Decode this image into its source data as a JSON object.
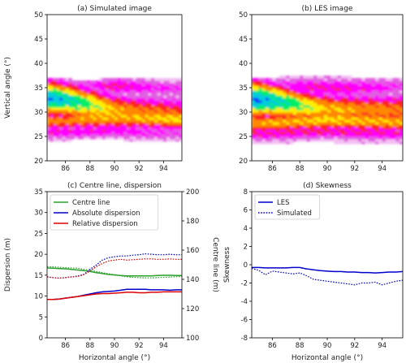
{
  "chart_data": [
    {
      "id": "a",
      "type": "heatmap",
      "title": "(a) Simulated image",
      "xlabel": "",
      "ylabel": "Vertical angle (°)",
      "xlim": [
        84.5,
        95.5
      ],
      "ylim": [
        20,
        50
      ],
      "xticks": [
        86,
        88,
        90,
        92,
        94
      ],
      "yticks": [
        20,
        25,
        30,
        35,
        40,
        45,
        50
      ],
      "colormap": [
        "#ffffff",
        "#f3c0f3",
        "#e060e0",
        "#ff00ff",
        "#ff2020",
        "#ff8800",
        "#ffee00",
        "#00ee66",
        "#00ccdd",
        "#1033ff"
      ],
      "bands": [
        {
          "x": [
            84.5,
            86,
            88,
            90,
            92,
            94,
            95.5
          ],
          "y": [
            33.0,
            32.6,
            31.6,
            30.4,
            30.0,
            29.8,
            29.6
          ],
          "h": [
            2.6,
            2.5,
            2.4,
            2.4,
            2.5,
            2.6,
            2.6
          ],
          "v": [
            0.95,
            0.88,
            0.75,
            0.6,
            0.55,
            0.5,
            0.5
          ]
        },
        {
          "x": [
            84.5,
            86,
            88,
            90,
            92,
            94,
            95.5
          ],
          "y": [
            28.2,
            28.3,
            28.8,
            29.0,
            29.0,
            28.8,
            28.6
          ],
          "h": [
            1.4,
            1.4,
            1.6,
            1.8,
            1.8,
            1.7,
            1.6
          ],
          "v": [
            0.55,
            0.55,
            0.6,
            0.6,
            0.6,
            0.65,
            0.65
          ]
        },
        {
          "x": [
            84.5,
            86,
            88,
            90,
            92,
            94,
            95.5
          ],
          "y": [
            36.0,
            35.8,
            35.5,
            35.4,
            35.2,
            35.0,
            35.0
          ],
          "h": [
            1.0,
            1.0,
            1.2,
            1.4,
            1.4,
            1.2,
            1.0
          ],
          "v": [
            0.25,
            0.25,
            0.3,
            0.4,
            0.35,
            0.32,
            0.3
          ]
        },
        {
          "x": [
            84.5,
            86,
            88,
            90,
            92,
            94,
            95.5
          ],
          "y": [
            26.0,
            26.0,
            26.2,
            26.4,
            26.0,
            25.8,
            25.6
          ],
          "h": [
            1.2,
            1.2,
            1.2,
            1.2,
            1.2,
            1.1,
            1.0
          ],
          "v": [
            0.35,
            0.35,
            0.35,
            0.35,
            0.33,
            0.3,
            0.28
          ]
        }
      ],
      "envelope": {
        "x": [
          84.5,
          86,
          88,
          90,
          92,
          94,
          95.5
        ],
        "top": [
          37.0,
          36.8,
          36.6,
          37.0,
          37.2,
          37.2,
          37.0
        ],
        "bottom": [
          24.2,
          24.2,
          24.4,
          24.4,
          24.0,
          24.0,
          24.0
        ]
      }
    },
    {
      "id": "b",
      "type": "heatmap",
      "title": "(b) LES image",
      "xlabel": "",
      "ylabel": "",
      "xlim": [
        84.5,
        95.5
      ],
      "ylim": [
        20,
        50
      ],
      "xticks": [
        86,
        88,
        90,
        92,
        94
      ],
      "yticks": [
        20,
        25,
        30,
        35,
        40,
        45,
        50
      ],
      "colormap": [
        "#ffffff",
        "#f3c0f3",
        "#e060e0",
        "#ff00ff",
        "#ff2020",
        "#ff8800",
        "#ffee00",
        "#00ee66",
        "#00ccdd",
        "#1033ff"
      ],
      "bands": [
        {
          "x": [
            84.5,
            86,
            88,
            90,
            92,
            94,
            95.5
          ],
          "y": [
            32.8,
            32.4,
            31.4,
            30.8,
            30.6,
            30.6,
            30.6
          ],
          "h": [
            2.8,
            2.6,
            2.4,
            2.2,
            2.2,
            2.2,
            2.2
          ],
          "v": [
            0.97,
            0.9,
            0.75,
            0.62,
            0.58,
            0.55,
            0.55
          ]
        },
        {
          "x": [
            84.5,
            86,
            88,
            90,
            92,
            94,
            95.5
          ],
          "y": [
            27.8,
            27.8,
            28.2,
            28.6,
            28.4,
            28.2,
            28.0
          ],
          "h": [
            1.4,
            1.4,
            1.5,
            1.6,
            1.6,
            1.6,
            1.6
          ],
          "v": [
            0.58,
            0.6,
            0.62,
            0.65,
            0.62,
            0.6,
            0.6
          ]
        },
        {
          "x": [
            84.5,
            86,
            88,
            90,
            92,
            94,
            95.5
          ],
          "y": [
            35.6,
            35.6,
            35.4,
            35.0,
            35.0,
            35.2,
            35.4
          ],
          "h": [
            1.2,
            1.2,
            1.4,
            1.6,
            1.6,
            1.4,
            1.2
          ],
          "v": [
            0.3,
            0.3,
            0.35,
            0.38,
            0.36,
            0.33,
            0.3
          ]
        },
        {
          "x": [
            84.5,
            86,
            88,
            90,
            92,
            94,
            95.5
          ],
          "y": [
            25.8,
            25.8,
            26.0,
            26.2,
            26.0,
            25.8,
            25.6
          ],
          "h": [
            1.2,
            1.2,
            1.2,
            1.2,
            1.2,
            1.1,
            1.0
          ],
          "v": [
            0.4,
            0.4,
            0.4,
            0.42,
            0.4,
            0.38,
            0.36
          ]
        }
      ],
      "envelope": {
        "x": [
          84.5,
          86,
          88,
          90,
          92,
          94,
          95.5
        ],
        "top": [
          37.0,
          37.2,
          37.4,
          37.6,
          37.2,
          37.0,
          37.2
        ],
        "bottom": [
          23.6,
          23.6,
          23.8,
          23.8,
          23.6,
          23.4,
          23.4
        ]
      }
    },
    {
      "id": "c",
      "type": "line",
      "title": "(c) Centre line, dispersion",
      "xlabel": "Horizontal angle (°)",
      "ylabel": "Dispersion (m)",
      "ylabel_right": "Centre line (m)",
      "xlim": [
        84.5,
        95.5
      ],
      "ylim": [
        0,
        35
      ],
      "ylim_right": [
        100,
        200
      ],
      "xticks": [
        86,
        88,
        90,
        92,
        94
      ],
      "yticks": [
        0,
        5,
        10,
        15,
        20,
        25,
        30,
        35
      ],
      "yticks_right": [
        100,
        120,
        140,
        160,
        180,
        200
      ],
      "legend_position": "top-left",
      "x": [
        84.5,
        85,
        85.5,
        86,
        86.5,
        87,
        87.5,
        88,
        88.5,
        89,
        89.5,
        90,
        90.5,
        91,
        91.5,
        92,
        92.5,
        93,
        93.5,
        94,
        94.5,
        95,
        95.5
      ],
      "series": [
        {
          "name": "Centre line",
          "legend": true,
          "color": "#2ca02c",
          "dash": false,
          "axis": "right",
          "values": [
            147.8,
            147.6,
            147.4,
            147.2,
            146.8,
            146.4,
            146.0,
            145.4,
            144.6,
            144.0,
            143.4,
            143.0,
            142.6,
            142.4,
            142.4,
            142.4,
            142.4,
            142.4,
            142.6,
            142.8,
            142.8,
            142.6,
            142.6
          ]
        },
        {
          "name": "Absolute dispersion",
          "legend": true,
          "color": "#0000cc",
          "dash": false,
          "axis": "left",
          "values": [
            9.2,
            9.2,
            9.3,
            9.5,
            9.7,
            9.9,
            10.2,
            10.5,
            10.8,
            11.0,
            11.1,
            11.2,
            11.4,
            11.6,
            11.6,
            11.6,
            11.6,
            11.5,
            11.5,
            11.5,
            11.4,
            11.5,
            11.5
          ]
        },
        {
          "name": "Relative dispersion",
          "legend": true,
          "color": "#dd0000",
          "dash": false,
          "axis": "left",
          "values": [
            9.2,
            9.2,
            9.3,
            9.5,
            9.7,
            9.9,
            10.1,
            10.3,
            10.5,
            10.6,
            10.6,
            10.7,
            10.8,
            10.9,
            10.9,
            10.8,
            10.8,
            10.9,
            10.9,
            11.0,
            11.0,
            11.0,
            11.0
          ]
        },
        {
          "name": "",
          "legend": false,
          "color": "#2ca02c",
          "dash": true,
          "axis": "right",
          "values": [
            148.6,
            148.6,
            148.2,
            148.0,
            147.8,
            147.6,
            146.8,
            146.4,
            145.4,
            144.6,
            143.8,
            143.2,
            142.4,
            141.8,
            141.4,
            141.2,
            141.0,
            141.0,
            141.2,
            141.4,
            141.6,
            141.8,
            142.0
          ]
        },
        {
          "name": "",
          "legend": false,
          "color": "#0000cc",
          "dash": true,
          "axis": "left",
          "values": [
            14.6,
            14.4,
            14.3,
            14.4,
            14.6,
            14.8,
            15.2,
            16.4,
            17.4,
            18.6,
            19.2,
            19.4,
            19.6,
            19.6,
            19.8,
            19.9,
            20.1,
            20.0,
            19.9,
            19.9,
            20.0,
            19.9,
            19.9
          ]
        },
        {
          "name": "",
          "legend": false,
          "color": "#dd0000",
          "dash": true,
          "axis": "left",
          "values": [
            14.6,
            14.4,
            14.3,
            14.4,
            14.6,
            14.7,
            15.1,
            16.0,
            17.0,
            17.8,
            18.4,
            18.6,
            18.8,
            18.6,
            18.7,
            18.8,
            18.9,
            18.9,
            18.8,
            18.8,
            18.9,
            18.8,
            18.8
          ]
        }
      ]
    },
    {
      "id": "d",
      "type": "line",
      "title": "(d) Skewness",
      "xlabel": "Horizontal angle (°)",
      "ylabel": "Skewness",
      "xlim": [
        84.5,
        95.5
      ],
      "ylim": [
        -8,
        8
      ],
      "xticks": [
        86,
        88,
        90,
        92,
        94
      ],
      "yticks": [
        -8,
        -6,
        -4,
        -2,
        0,
        2,
        4,
        6,
        8
      ],
      "legend_position": "top-left",
      "x": [
        84.5,
        85,
        85.5,
        86,
        86.5,
        87,
        87.5,
        88,
        88.5,
        89,
        89.5,
        90,
        90.5,
        91,
        91.5,
        92,
        92.5,
        93,
        93.5,
        94,
        94.5,
        95,
        95.5
      ],
      "series": [
        {
          "name": "LES",
          "legend": true,
          "color": "#0000cc",
          "dash": false,
          "values": [
            -0.3,
            -0.3,
            -0.35,
            -0.35,
            -0.35,
            -0.35,
            -0.3,
            -0.3,
            -0.45,
            -0.55,
            -0.65,
            -0.7,
            -0.75,
            -0.75,
            -0.8,
            -0.8,
            -0.85,
            -0.85,
            -0.9,
            -0.85,
            -0.8,
            -0.8,
            -0.75
          ]
        },
        {
          "name": "Simulated",
          "legend": true,
          "color": "#0000cc",
          "dash": true,
          "values": [
            -0.4,
            -0.6,
            -1.1,
            -0.7,
            -0.8,
            -0.9,
            -1.0,
            -0.9,
            -1.2,
            -1.6,
            -1.7,
            -1.8,
            -1.9,
            -2.0,
            -2.1,
            -2.2,
            -2.0,
            -2.0,
            -1.9,
            -2.2,
            -2.0,
            -1.8,
            -1.7
          ]
        }
      ]
    }
  ]
}
